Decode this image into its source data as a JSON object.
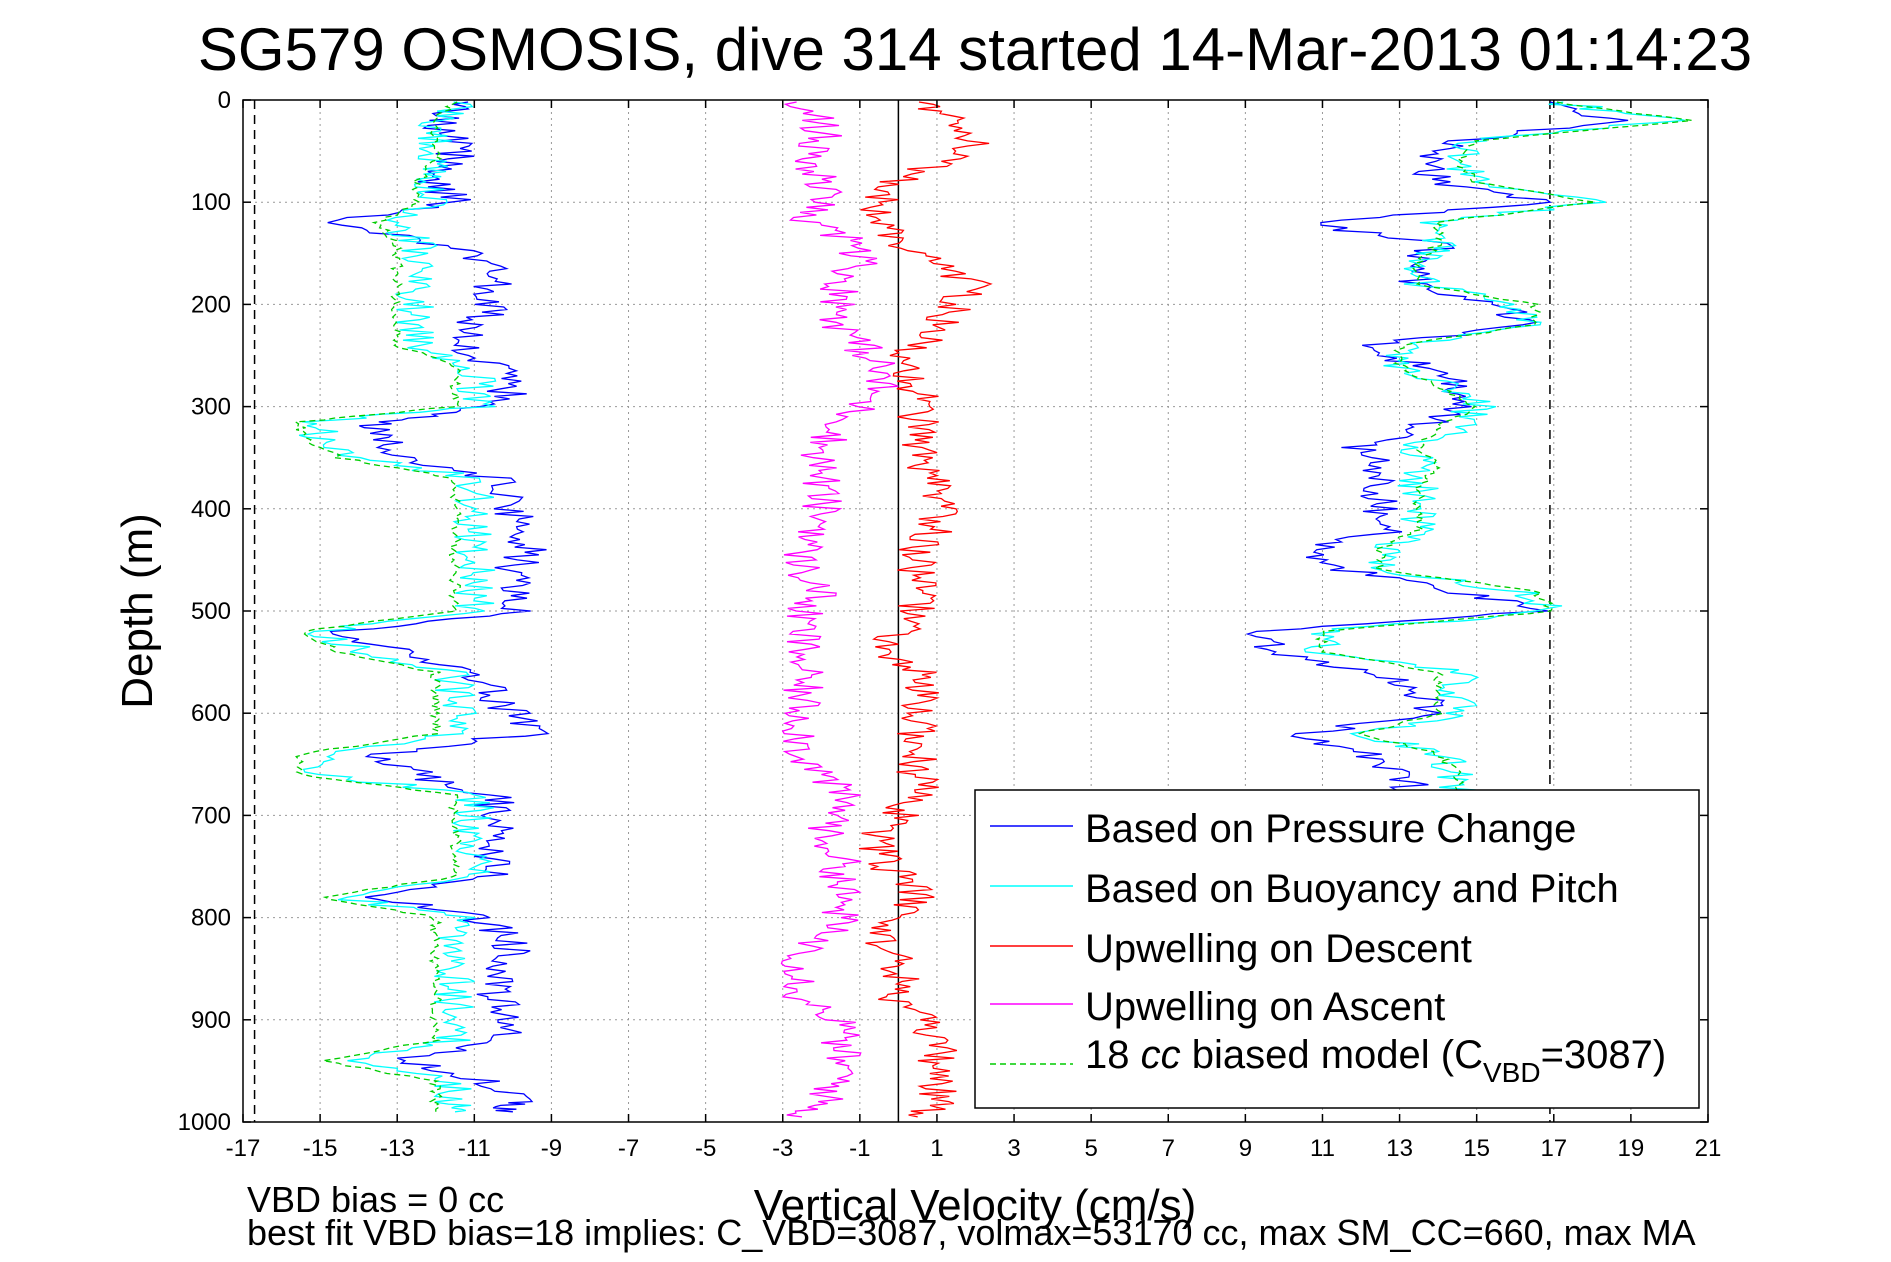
{
  "chart_data": {
    "type": "line",
    "title": "SG579 OSMOSIS, dive 314 started 14-Mar-2013 01:14:23",
    "xlabel": "Vertical Velocity (cm/s)",
    "ylabel": "Depth (m)",
    "xlim": [
      -17,
      21
    ],
    "ylim": [
      1000,
      0
    ],
    "y_reversed": true,
    "xticks": [
      -17,
      -15,
      -13,
      -11,
      -9,
      -7,
      -5,
      -3,
      -1,
      1,
      3,
      5,
      7,
      9,
      11,
      13,
      15,
      17,
      19,
      21
    ],
    "yticks": [
      0,
      100,
      200,
      300,
      400,
      500,
      600,
      700,
      800,
      900,
      1000
    ],
    "grid": true,
    "legend_position": "bottom-right",
    "reference_lines": [
      {
        "x": -16.7,
        "style": "dashed",
        "color": "#000000"
      },
      {
        "x": 16.9,
        "style": "dashed",
        "color": "#000000"
      },
      {
        "x": 0,
        "style": "solid",
        "color": "#000000"
      }
    ],
    "series": [
      {
        "name": "Based on Pressure Change",
        "color": "#0000ff",
        "style": "solid",
        "segments": [
          {
            "depth": [
              2,
              20,
              40,
              60,
              80,
              100,
              120,
              140,
              160,
              180,
              200,
              220,
              240,
              260,
              280,
              300,
              315,
              330,
              350,
              370,
              400,
              420,
              440,
              460,
              480,
              500,
              520,
              540,
              560,
              580,
              600,
              620,
              640,
              660,
              680,
              700,
              720,
              740,
              760,
              780,
              800,
              820,
              840,
              860,
              880,
              900,
              920,
              940,
              960,
              980,
              990
            ],
            "velocity": [
              -11,
              -12,
              -11.5,
              -11.5,
              -12,
              -11.5,
              -15,
              -12,
              -10.5,
              -10.5,
              -10.5,
              -11,
              -11.5,
              -10.5,
              -10,
              -10.5,
              -13.5,
              -13.5,
              -13,
              -10.5,
              -10,
              -10,
              -9.5,
              -10,
              -10,
              -10,
              -14.5,
              -13,
              -11,
              -10.5,
              -10,
              -9.5,
              -13.5,
              -12.5,
              -10.5,
              -10.5,
              -10.5,
              -10.5,
              -10.5,
              -13.5,
              -11,
              -10,
              -10,
              -10.5,
              -10.5,
              -10,
              -10.5,
              -13,
              -10.5,
              -10,
              -10
            ]
          },
          {
            "depth": [
              2,
              20,
              40,
              60,
              80,
              100,
              120,
              140,
              160,
              180,
              200,
              220,
              240,
              260,
              280,
              300,
              320,
              340,
              360,
              380,
              400,
              420,
              440,
              460,
              480,
              500,
              520,
              540,
              560,
              580,
              600,
              620,
              640,
              660,
              680
            ],
            "velocity": [
              16.5,
              18.5,
              14.5,
              13.5,
              14,
              17,
              10.5,
              14,
              13.5,
              13.5,
              15.5,
              16.5,
              12,
              13.5,
              14.5,
              14.5,
              13.5,
              12,
              12.5,
              12.5,
              12.5,
              13,
              10.5,
              11.5,
              14.5,
              16.5,
              9.5,
              9.5,
              12.5,
              13.5,
              14,
              10.5,
              12,
              13,
              13.5
            ]
          }
        ]
      },
      {
        "name": "Based on Buoyancy and Pitch",
        "color": "#00ffff",
        "style": "solid",
        "segments": [
          {
            "depth": [
              2,
              20,
              40,
              60,
              80,
              100,
              120,
              140,
              160,
              180,
              200,
              220,
              240,
              260,
              280,
              300,
              315,
              330,
              350,
              370,
              400,
              420,
              440,
              460,
              480,
              500,
              520,
              540,
              560,
              580,
              600,
              620,
              640,
              660,
              680,
              700,
              720,
              740,
              760,
              780,
              800,
              820,
              840,
              860,
              880,
              900,
              920,
              940,
              960,
              980,
              990
            ],
            "velocity": [
              -11,
              -12,
              -12,
              -12,
              -12.5,
              -12,
              -13,
              -12.5,
              -12.5,
              -12.5,
              -12.5,
              -12.5,
              -12.5,
              -11,
              -11,
              -11,
              -15,
              -15,
              -14,
              -11,
              -11,
              -11,
              -11,
              -11,
              -11,
              -11,
              -15,
              -14,
              -11.5,
              -11.5,
              -11.5,
              -11.5,
              -15,
              -15,
              -11,
              -11,
              -11,
              -11,
              -11,
              -14.5,
              -11.5,
              -11.5,
              -11.5,
              -11.5,
              -11.5,
              -11.5,
              -11.5,
              -14.5,
              -11.5,
              -11.5,
              -11.5
            ]
          },
          {
            "depth": [
              2,
              20,
              40,
              60,
              80,
              100,
              120,
              140,
              160,
              180,
              200,
              220,
              240,
              260,
              280,
              300,
              320,
              340,
              360,
              380,
              400,
              420,
              440,
              460,
              480,
              500,
              520,
              540,
              560,
              580,
              600,
              620,
              640,
              660,
              680
            ],
            "velocity": [
              17,
              20,
              15,
              14.5,
              15,
              18,
              14,
              14,
              13.5,
              13.5,
              16,
              16.5,
              13,
              13,
              14.5,
              15,
              14.5,
              13.5,
              13.5,
              13.5,
              13.5,
              13.5,
              12.5,
              12.5,
              16,
              17,
              11,
              11,
              14.5,
              14.5,
              14.5,
              12,
              14,
              14.5,
              14.5
            ]
          }
        ]
      },
      {
        "name": "Upwelling on Descent",
        "color": "#ff0000",
        "style": "solid",
        "segments": [
          {
            "depth": [
              2,
              20,
              40,
              60,
              80,
              100,
              120,
              140,
              160,
              180,
              200,
              220,
              240,
              260,
              280,
              300,
              320,
              340,
              360,
              380,
              400,
              420,
              440,
              460,
              480,
              500,
              520,
              540,
              560,
              580,
              600,
              620,
              640,
              660,
              680,
              700,
              720,
              740,
              760,
              780,
              800,
              820,
              840,
              860,
              880,
              900,
              920,
              940,
              960,
              980,
              995
            ],
            "velocity": [
              0.5,
              1.5,
              2,
              1,
              0,
              -0.5,
              -0.5,
              0,
              1,
              2,
              1.5,
              1,
              0.5,
              0,
              0.5,
              0.5,
              0.5,
              0.5,
              0.5,
              1,
              1,
              1,
              0.5,
              0.5,
              0.5,
              0.5,
              0,
              -0.5,
              0.5,
              0.5,
              0.5,
              0.5,
              0.5,
              0.5,
              0.5,
              0,
              -0.5,
              -0.5,
              0,
              0.5,
              0,
              -0.5,
              0,
              0,
              0,
              0.5,
              1,
              1,
              1,
              1,
              0.5
            ]
          }
        ]
      },
      {
        "name": "Upwelling on Ascent",
        "color": "#ff00ff",
        "style": "solid",
        "segments": [
          {
            "depth": [
              2,
              20,
              40,
              60,
              80,
              100,
              120,
              140,
              160,
              180,
              200,
              220,
              240,
              260,
              280,
              300,
              320,
              340,
              360,
              380,
              400,
              420,
              440,
              460,
              480,
              500,
              520,
              540,
              560,
              580,
              600,
              620,
              640,
              660,
              680,
              700,
              720,
              740,
              760,
              780,
              800,
              820,
              840,
              860,
              880,
              900,
              920,
              940,
              960,
              980,
              995
            ],
            "velocity": [
              -2.5,
              -2,
              -2,
              -2.5,
              -2,
              -2,
              -2.5,
              -1,
              -1,
              -1.5,
              -1.5,
              -1.5,
              -1,
              -0.5,
              -0.5,
              -1,
              -1.5,
              -2,
              -2,
              -2,
              -2,
              -2,
              -2.5,
              -2.5,
              -2,
              -2.5,
              -2.5,
              -2.5,
              -2.5,
              -2.5,
              -2.5,
              -2.5,
              -2.5,
              -2,
              -1.5,
              -1.5,
              -2,
              -1.5,
              -1.5,
              -1.5,
              -1.5,
              -2,
              -2.5,
              -2.5,
              -2.5,
              -1.5,
              -1.5,
              -1.5,
              -1.5,
              -2,
              -2.5
            ]
          }
        ]
      },
      {
        "name": "18 cc biased model (C_VBD=3087)",
        "color": "#00cc00",
        "style": "dashed",
        "segments": [
          {
            "depth": [
              2,
              20,
              40,
              60,
              80,
              100,
              120,
              140,
              160,
              180,
              200,
              220,
              240,
              260,
              280,
              300,
              315,
              330,
              350,
              370,
              400,
              420,
              440,
              460,
              480,
              500,
              520,
              540,
              560,
              580,
              600,
              620,
              640,
              660,
              680,
              700,
              720,
              740,
              760,
              780,
              800,
              820,
              840,
              860,
              880,
              900,
              920,
              940,
              960,
              980,
              990
            ],
            "velocity": [
              -11.5,
              -12,
              -12,
              -12,
              -12.5,
              -12.5,
              -13.5,
              -13,
              -13,
              -13,
              -13,
              -13,
              -13,
              -11.5,
              -11.5,
              -11.5,
              -15.5,
              -15.5,
              -14.5,
              -11.5,
              -11.5,
              -11.5,
              -11.5,
              -11.5,
              -11.5,
              -11.5,
              -15.5,
              -14.5,
              -12,
              -12,
              -12,
              -12,
              -15.5,
              -15.5,
              -11.5,
              -11.5,
              -11.5,
              -11.5,
              -11.5,
              -15,
              -12,
              -12,
              -12,
              -12,
              -12,
              -12,
              -12,
              -15,
              -12,
              -12,
              -12
            ]
          },
          {
            "depth": [
              2,
              20,
              40,
              60,
              80,
              100,
              120,
              140,
              160,
              180,
              200,
              220,
              240,
              260,
              280,
              300,
              320,
              340,
              360,
              380,
              400,
              420,
              440,
              460,
              480,
              500,
              520,
              540,
              560,
              580,
              600,
              620,
              640,
              660,
              680
            ],
            "velocity": [
              17,
              20.5,
              15,
              14.5,
              15,
              18,
              14,
              14,
              13.5,
              13.5,
              16.5,
              16.5,
              13,
              13,
              14,
              15,
              14,
              13.5,
              14,
              13.5,
              13.5,
              13.5,
              12.5,
              12.5,
              16.5,
              17,
              11,
              11,
              14,
              14,
              14,
              12,
              14,
              14.5,
              14.5
            ]
          }
        ]
      }
    ],
    "legend": {
      "entries": [
        {
          "text": "Based on Pressure Change",
          "series": 0
        },
        {
          "text": "Based on Buoyancy and Pitch",
          "series": 1
        },
        {
          "text": "Upwelling on Descent",
          "series": 2
        },
        {
          "text": "Upwelling on Ascent",
          "series": 3
        },
        {
          "prefix": "18 ",
          "cc": "cc",
          "middle": " biased model (C",
          "sub": "VBD",
          "suffix": "=3087)",
          "series": 4
        }
      ]
    },
    "annotations": [
      "VBD bias = 0 cc",
      "best fit VBD bias=18 implies: C_VBD=3087, volmax=53170 cc, max SM_CC=660, max MA"
    ]
  }
}
